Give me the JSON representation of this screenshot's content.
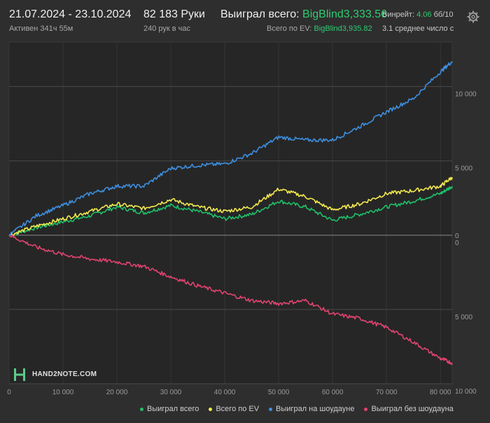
{
  "header": {
    "date_range": "21.07.2024 - 23.10.2024",
    "active_time": "Активен 341ч 55м",
    "hands": "82 183 Руки",
    "hands_per_hour": "240 рук в час",
    "won_total_label": "Выиграл всего:",
    "won_total_value": "BigBlind3,333.56",
    "ev_total_label": "Всего по EV:",
    "ev_total_value": "BigBlind3,935.82",
    "winrate_label": "Винрейт:",
    "winrate_value": "4.06",
    "winrate_unit": "бб/10",
    "avg_players": "3.1 среднее число с"
  },
  "colors": {
    "won_total": "#1fbf6a",
    "ev_total": "#f2e94e",
    "showdown": "#3d8fe0",
    "non_showdown": "#e0436f",
    "positive_value": "#2ecc71"
  },
  "icons": {
    "settings": "gear-icon",
    "logo": "hand2note-logo-icon"
  },
  "logo_text": "HAND2NOTE.COM",
  "chart_data": {
    "type": "line",
    "x_ticks": [
      "0",
      "10 000",
      "20 000",
      "30 000",
      "40 000",
      "50 000",
      "60 000",
      "70 000",
      "80 000"
    ],
    "y_ticks": [
      "10 000",
      "5 000",
      "0",
      "5 000",
      "10 000"
    ],
    "y_tick_values": [
      10000,
      5000,
      0,
      -5000,
      -10000
    ],
    "xlim": [
      0,
      82183
    ],
    "ylim": [
      -10000,
      13000
    ],
    "grid": true,
    "legend_position": "bottom",
    "x": [
      0,
      5000,
      10000,
      15000,
      20000,
      25000,
      30000,
      35000,
      40000,
      45000,
      50000,
      55000,
      60000,
      65000,
      70000,
      75000,
      80000,
      82183
    ],
    "series": [
      {
        "name": "Выиграл всего",
        "color_key": "won_total",
        "values": [
          0,
          500,
          900,
          1300,
          1900,
          1500,
          2000,
          1600,
          1100,
          1400,
          2300,
          1900,
          1000,
          1400,
          1900,
          2300,
          2800,
          3300
        ]
      },
      {
        "name": "Всего по EV",
        "color_key": "ev_total",
        "values": [
          0,
          600,
          1100,
          1600,
          2100,
          1800,
          2400,
          1900,
          1600,
          1900,
          3100,
          2600,
          1700,
          2100,
          2800,
          3000,
          3300,
          3900
        ]
      },
      {
        "name": "Выиграл на шоудауне",
        "color_key": "showdown",
        "values": [
          0,
          1300,
          2000,
          2800,
          3300,
          3300,
          4500,
          4700,
          4800,
          5500,
          6600,
          6400,
          6400,
          7300,
          8300,
          9200,
          11000,
          11700
        ]
      },
      {
        "name": "Выиграл без шоудауна",
        "color_key": "non_showdown",
        "values": [
          0,
          -800,
          -1300,
          -1600,
          -1800,
          -2100,
          -2800,
          -3400,
          -3900,
          -4400,
          -4600,
          -4400,
          -5300,
          -5600,
          -6200,
          -7200,
          -8300,
          -8600
        ]
      }
    ]
  },
  "legend": [
    {
      "label": "Выиграл всего",
      "color_key": "won_total"
    },
    {
      "label": "Всего по EV",
      "color_key": "ev_total"
    },
    {
      "label": "Выиграл на шоудауне",
      "color_key": "showdown"
    },
    {
      "label": "Выиграл без шоудауна",
      "color_key": "non_showdown"
    }
  ]
}
